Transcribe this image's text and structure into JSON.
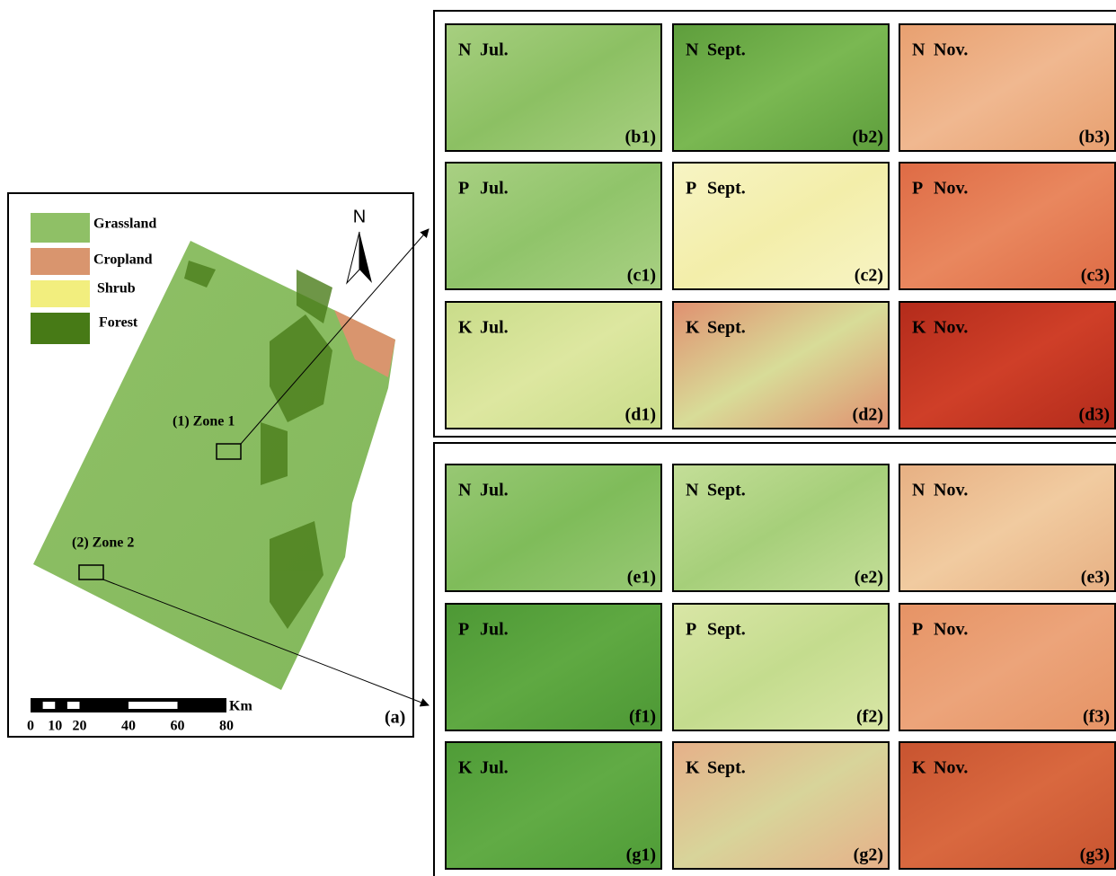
{
  "map": {
    "legend": [
      "Grassland",
      "Cropland",
      "Shrub",
      "Forest"
    ],
    "north": "N",
    "zones": [
      "(1) Zone 1",
      "(2) Zone 2"
    ],
    "scale": {
      "unit": "Km",
      "ticks": [
        0,
        10,
        20,
        40,
        60,
        80
      ]
    },
    "label": "(a)"
  },
  "panels": [
    {
      "tiles": [
        {
          "letter": "N",
          "month": "Jul.",
          "label": "(b1)"
        },
        {
          "letter": "N",
          "month": "Sept.",
          "label": "(b2)"
        },
        {
          "letter": "N",
          "month": "Nov.",
          "label": "(b3)"
        },
        {
          "letter": "P",
          "month": "Jul.",
          "label": "(c1)"
        },
        {
          "letter": "P",
          "month": "Sept.",
          "label": "(c2)"
        },
        {
          "letter": "P",
          "month": "Nov.",
          "label": "(c3)"
        },
        {
          "letter": "K",
          "month": "Jul.",
          "label": "(d1)"
        },
        {
          "letter": "K",
          "month": "Sept.",
          "label": "(d2)"
        },
        {
          "letter": "K",
          "month": "Nov.",
          "label": "(d3)"
        }
      ]
    },
    {
      "tiles": [
        {
          "letter": "N",
          "month": "Jul.",
          "label": "(e1)"
        },
        {
          "letter": "N",
          "month": "Sept.",
          "label": "(e2)"
        },
        {
          "letter": "N",
          "month": "Nov.",
          "label": "(e3)"
        },
        {
          "letter": "P",
          "month": "Jul.",
          "label": "(f1)"
        },
        {
          "letter": "P",
          "month": "Sept.",
          "label": "(f2)"
        },
        {
          "letter": "P",
          "month": "Nov.",
          "label": "(f3)"
        },
        {
          "letter": "K",
          "month": "Jul.",
          "label": "(g1)"
        },
        {
          "letter": "K",
          "month": "Sept.",
          "label": "(g2)"
        },
        {
          "letter": "K",
          "month": "Nov.",
          "label": "(g3)"
        }
      ]
    }
  ]
}
